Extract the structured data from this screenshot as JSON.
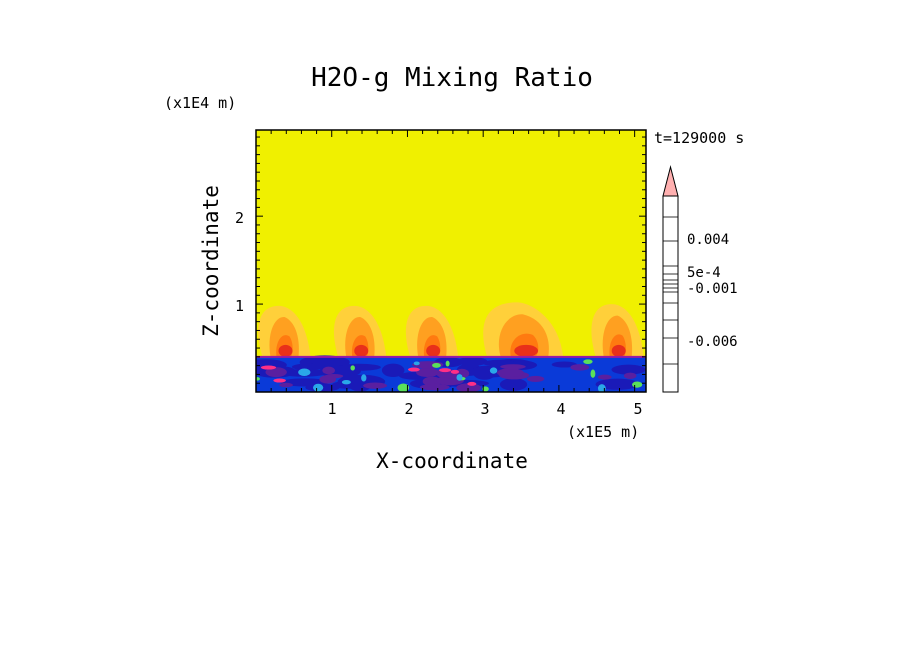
{
  "chart_data": {
    "type": "heatmap",
    "title": "H2O-g Mixing Ratio",
    "xlabel": "X-coordinate",
    "ylabel": "Z-coordinate",
    "x_unit": "(x1E5 m)",
    "y_unit": "(x1E4 m)",
    "time_label": "t=129000 s",
    "xlim": [
      0,
      5.15
    ],
    "ylim": [
      0,
      2.98
    ],
    "x_ticks": [
      "1",
      "2",
      "3",
      "4",
      "5"
    ],
    "y_ticks": [
      "1",
      "2"
    ],
    "colorbar_labels": [
      "0.004",
      "5e-4",
      "-0.001",
      "-0.006"
    ],
    "colorbar_colors": [
      "#ff2f86",
      "#9a1ba6",
      "#5a1fa0",
      "#1a1ab8",
      "#0a3ad8",
      "#2aa7e8",
      "#5ae05a",
      "#f0f000",
      "#ffd03a",
      "#ffa020",
      "#ff7a10",
      "#e8301a",
      "#ff7f7f",
      "#ffb0b0"
    ],
    "background_level_color": "#f0f000",
    "boundary_layer_top": 0.4,
    "plumes": [
      {
        "x": 0.35,
        "z_top": 0.98
      },
      {
        "x": 1.35,
        "z_top": 0.98
      },
      {
        "x": 2.3,
        "z_top": 0.98
      },
      {
        "x": 3.5,
        "z_top": 1.02
      },
      {
        "x": 4.75,
        "z_top": 1.0
      }
    ]
  }
}
